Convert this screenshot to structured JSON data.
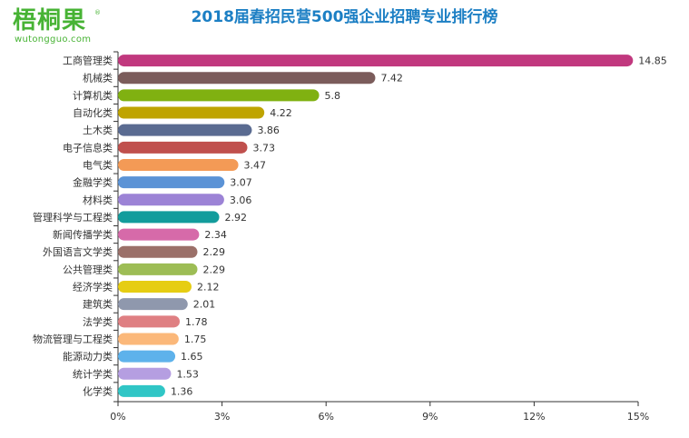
{
  "logo": {
    "text": "梧桐果",
    "registered": "®",
    "url": "wutongguo.com"
  },
  "colors": {
    "title": "#1c7fc4",
    "logo": "#47b334",
    "axis": "#333333",
    "label": "#333333",
    "bars": [
      "#c1387e",
      "#7b5c5b",
      "#80b111",
      "#bfa400",
      "#5a6b91",
      "#c0504d",
      "#f39a56",
      "#5b93d6",
      "#9c83d6",
      "#139c9c",
      "#d66aa9",
      "#9b7069",
      "#9dbd55",
      "#e6cd13",
      "#8f98ad",
      "#df7f82",
      "#fbb87a",
      "#5eb2eb",
      "#b59ee1",
      "#30c6c6"
    ]
  },
  "chart_data": {
    "type": "bar",
    "orientation": "horizontal",
    "title": "2018届春招民营500强企业招聘专业排行榜",
    "categories": [
      "工商管理类",
      "机械类",
      "计算机类",
      "自动化类",
      "土木类",
      "电子信息类",
      "电气类",
      "金融学类",
      "材料类",
      "管理科学与工程类",
      "新闻传播学类",
      "外国语言文学类",
      "公共管理类",
      "经济学类",
      "建筑类",
      "法学类",
      "物流管理与工程类",
      "能源动力类",
      "统计学类",
      "化学类"
    ],
    "values": [
      14.85,
      7.42,
      5.8,
      4.22,
      3.86,
      3.73,
      3.47,
      3.07,
      3.06,
      2.92,
      2.34,
      2.29,
      2.29,
      2.12,
      2.01,
      1.78,
      1.75,
      1.65,
      1.53,
      1.36
    ],
    "value_labels": [
      "14.85",
      "7.42",
      "5.8",
      "4.22",
      "3.86",
      "3.73",
      "3.47",
      "3.07",
      "3.06",
      "2.92",
      "2.34",
      "2.29",
      "2.29",
      "2.12",
      "2.01",
      "1.78",
      "1.75",
      "1.65",
      "1.53",
      "1.36"
    ],
    "xlim": [
      0,
      15
    ],
    "xticks": [
      0,
      3,
      6,
      9,
      12,
      15
    ],
    "xtick_labels": [
      "0%",
      "3%",
      "6%",
      "9%",
      "12%",
      "15%"
    ],
    "grid": false,
    "legend": "none"
  }
}
